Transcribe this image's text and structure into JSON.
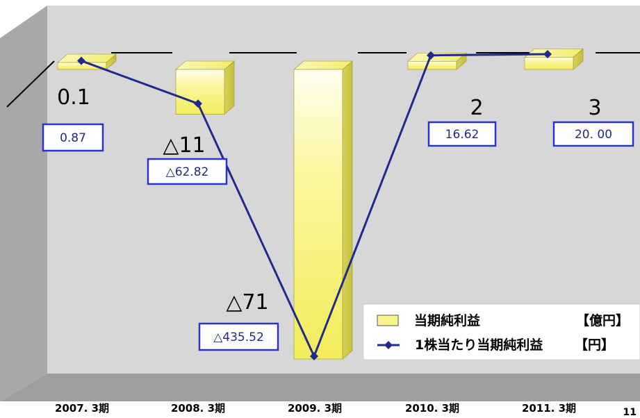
{
  "chart_data": {
    "type": "bar",
    "categories": [
      "2007. 3期",
      "2008. 3期",
      "2009. 3期",
      "2010. 3期",
      "2011. 3期"
    ],
    "series": [
      {
        "name": "当期純利益",
        "unit": "【億円】",
        "type": "bar",
        "values": [
          0.1,
          -11,
          -71,
          2,
          3
        ],
        "labels": [
          "0.1",
          "△11",
          "△71",
          "2",
          "3"
        ],
        "color": "#f7f28a"
      },
      {
        "name": "1株当たり当期純利益",
        "unit": "【円】",
        "type": "line",
        "values": [
          0.87,
          -62.82,
          -435.52,
          16.62,
          20.0
        ],
        "labels": [
          "0.87",
          "△62.82",
          "△435.52",
          "16.62",
          "20. 00"
        ],
        "color": "#1f2a8a"
      }
    ],
    "legend_position": "bottom-right",
    "grid": false
  },
  "page_number": "11"
}
